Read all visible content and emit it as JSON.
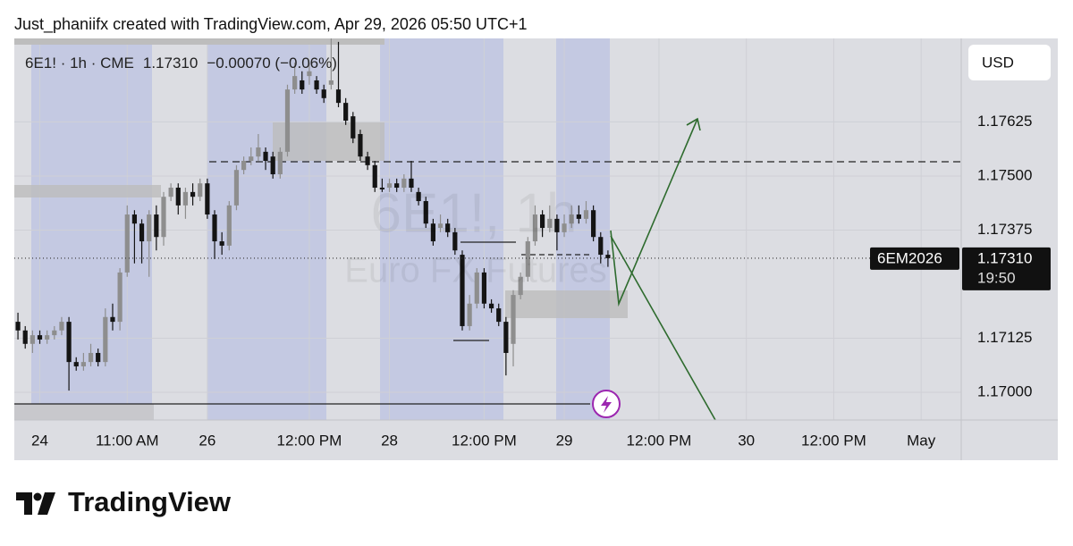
{
  "header": "Just_phaniifx created with TradingView.com, Apr 29, 2026 05:50 UTC+1",
  "footer_brand": "TradingView",
  "chart_data": {
    "type": "candlestick",
    "legend": {
      "symbol": "6E1! · 1h · CME",
      "last": "1.17310",
      "change": "−0.00070 (−0.06%)"
    },
    "watermark": {
      "symbol": "6E1!, 1h",
      "description": "Euro FX Futures"
    },
    "currency": "USD",
    "symbol_tag": "6EM2026",
    "last_price": {
      "value": 1.1731,
      "label": "1.17310"
    },
    "countdown": "19:50",
    "up_color": "#8e8e8e",
    "down_color": "#141414",
    "ylim": [
      1.16936,
      1.17818
    ],
    "yticks": [
      {
        "value": 1.17,
        "label": "1.17000"
      },
      {
        "value": 1.17125,
        "label": "1.17125"
      },
      {
        "value": 1.17375,
        "label": "1.17375"
      },
      {
        "value": 1.175,
        "label": "1.17500"
      },
      {
        "value": 1.17625,
        "label": "1.17625"
      }
    ],
    "grid": true,
    "categories": [
      null,
      null,
      null,
      "24",
      null,
      null,
      null,
      null,
      null,
      null,
      null,
      null,
      null,
      null,
      null,
      "11:00 AM",
      null,
      null,
      null,
      null,
      null,
      null,
      null,
      null,
      null,
      null,
      "26",
      null,
      null,
      null,
      null,
      null,
      null,
      null,
      null,
      null,
      null,
      null,
      null,
      null,
      "12:00 PM",
      null,
      null,
      null,
      null,
      null,
      null,
      null,
      null,
      null,
      null,
      "28",
      null,
      null,
      null,
      null,
      null,
      null,
      null,
      null,
      null,
      null,
      null,
      null,
      "12:00 PM",
      null,
      null,
      null,
      null,
      null,
      null,
      null,
      null,
      null,
      null,
      "29",
      null,
      null,
      null,
      null,
      null,
      null,
      null,
      null,
      null,
      null,
      null,
      null,
      "12:00 PM",
      null,
      null,
      null,
      null,
      null,
      null,
      null,
      null,
      null,
      null,
      null,
      "30",
      null,
      null,
      null,
      null,
      null,
      null,
      null,
      null,
      null,
      null,
      null,
      "12:00 PM",
      null,
      null,
      null,
      null,
      null,
      null,
      null,
      null,
      null,
      null,
      null,
      "May",
      null,
      null,
      null,
      null,
      null
    ],
    "open": [
      1.17163,
      1.17143,
      1.17112,
      1.17132,
      1.17122,
      1.17132,
      1.17143,
      1.17163,
      1.1707,
      1.1706,
      1.1707,
      1.17091,
      1.1707,
      1.17174,
      1.17163,
      1.17277,
      1.17411,
      1.1739,
      1.17349,
      1.17411,
      1.17359,
      1.17452,
      1.17473,
      1.17432,
      1.17463,
      1.17452,
      1.17483,
      1.17411,
      1.17349,
      1.17339,
      1.17432,
      1.17514,
      1.17535,
      1.17545,
      1.17556,
      1.17545,
      1.17504,
      1.17556,
      1.177,
      1.17721,
      1.17731,
      1.17721,
      1.177,
      1.17711,
      1.177,
      1.17669,
      1.17638,
      1.17597,
      1.17545,
      1.17525,
      1.17473,
      1.17473,
      1.17483,
      1.17473,
      1.17494,
      1.17463,
      1.17442,
      1.1739,
      1.1738,
      1.1739,
      1.1737,
      1.17318,
      1.17153,
      1.17205,
      1.17277,
      1.17205,
      1.17194,
      1.17163,
      1.17112,
      1.17225,
      1.17267,
      1.17349,
      1.17411,
      1.1738,
      1.17401,
      1.1737,
      1.1739,
      1.17411,
      1.17401,
      1.17421,
      1.17359,
      1.17318,
      null,
      null,
      null,
      null,
      null,
      null,
      null,
      null,
      null,
      null,
      null,
      null,
      null,
      null,
      null,
      null,
      null,
      null,
      null,
      null,
      null,
      null,
      null,
      null,
      null,
      null,
      null,
      null,
      null,
      null,
      null,
      null,
      null,
      null,
      null,
      null,
      null,
      null,
      null,
      null,
      null,
      null,
      null,
      null,
      null,
      null,
      null,
      null
    ],
    "high": [
      1.17184,
      1.17153,
      1.17143,
      1.17143,
      1.17143,
      1.17153,
      1.17174,
      1.17174,
      1.17081,
      1.17091,
      1.17112,
      1.17101,
      1.17194,
      1.17205,
      1.17287,
      1.17432,
      1.17421,
      1.174,
      1.17421,
      1.17432,
      1.17463,
      1.17483,
      1.17483,
      1.17473,
      1.17483,
      1.17494,
      1.17494,
      1.17421,
      1.1737,
      1.17442,
      1.17525,
      1.17545,
      1.17566,
      1.17597,
      1.17566,
      1.17556,
      1.17566,
      1.17711,
      1.17762,
      1.17742,
      1.17762,
      1.17731,
      1.17711,
      1.17818,
      1.1781,
      1.1768,
      1.17648,
      1.17607,
      1.17556,
      1.17535,
      1.17494,
      1.17494,
      1.17494,
      1.17504,
      1.17535,
      1.17473,
      1.17452,
      1.17401,
      1.17411,
      1.17401,
      1.1738,
      1.17328,
      1.17225,
      1.17287,
      1.17287,
      1.17215,
      1.17205,
      1.17174,
      1.17236,
      1.17277,
      1.17359,
      1.17432,
      1.17421,
      1.17432,
      1.17411,
      1.17411,
      1.17432,
      1.17432,
      1.17442,
      1.17432,
      1.1737,
      1.17328,
      null,
      null,
      null,
      null,
      null,
      null,
      null,
      null,
      null,
      null,
      null,
      null,
      null,
      null,
      null,
      null,
      null,
      null,
      null,
      null,
      null,
      null,
      null,
      null,
      null,
      null,
      null,
      null,
      null,
      null,
      null,
      null,
      null,
      null,
      null,
      null,
      null,
      null,
      null,
      null,
      null,
      null,
      null,
      null,
      null,
      null,
      null,
      null
    ],
    "low": [
      1.17122,
      1.17101,
      1.17091,
      1.17112,
      1.17112,
      1.17122,
      1.17132,
      1.17004,
      1.1705,
      1.1705,
      1.1706,
      1.1706,
      1.1706,
      1.17143,
      1.17143,
      1.17267,
      1.17298,
      1.17298,
      1.17267,
      1.17328,
      1.17339,
      1.17442,
      1.17411,
      1.17401,
      1.17432,
      1.17442,
      1.17401,
      1.17308,
      1.17318,
      1.17328,
      1.17421,
      1.17504,
      1.17525,
      1.17535,
      1.17514,
      1.17494,
      1.17494,
      1.17545,
      1.1769,
      1.1769,
      1.17711,
      1.1769,
      1.17669,
      1.177,
      1.17659,
      1.17618,
      1.17576,
      1.17535,
      1.17514,
      1.17463,
      1.17463,
      1.17463,
      1.17463,
      1.17463,
      1.17463,
      1.17432,
      1.1738,
      1.17339,
      1.1737,
      1.17359,
      1.17318,
      1.17143,
      1.17143,
      1.17194,
      1.17194,
      1.17184,
      1.17153,
      1.17039,
      1.1706,
      1.17215,
      1.17256,
      1.17339,
      1.17359,
      1.1737,
      1.17328,
      1.17359,
      1.1738,
      1.1739,
      1.1739,
      1.17349,
      1.17298,
      1.1729,
      null,
      null,
      null,
      null,
      null,
      null,
      null,
      null,
      null,
      null,
      null,
      null,
      null,
      null,
      null,
      null,
      null,
      null,
      null,
      null,
      null,
      null,
      null,
      null,
      null,
      null,
      null,
      null,
      null,
      null,
      null,
      null,
      null,
      null,
      null,
      null,
      null,
      null,
      null,
      null,
      null,
      null,
      null,
      null,
      null,
      null,
      null,
      null
    ],
    "close": [
      1.17143,
      1.17112,
      1.17132,
      1.17122,
      1.17132,
      1.17143,
      1.17163,
      1.1707,
      1.1706,
      1.1707,
      1.17091,
      1.1707,
      1.17174,
      1.17163,
      1.17277,
      1.17411,
      1.1739,
      1.17349,
      1.17411,
      1.17359,
      1.17452,
      1.17473,
      1.17432,
      1.17463,
      1.17452,
      1.17483,
      1.17411,
      1.17349,
      1.17339,
      1.17432,
      1.17514,
      1.17535,
      1.17545,
      1.17566,
      1.17535,
      1.17504,
      1.17556,
      1.177,
      1.17731,
      1.177,
      1.17742,
      1.177,
      1.1768,
      1.17721,
      1.17669,
      1.17628,
      1.17587,
      1.17545,
      1.17525,
      1.17473,
      1.17469,
      1.17483,
      1.17473,
      1.17494,
      1.17473,
      1.17442,
      1.1739,
      1.17349,
      1.1739,
      1.1737,
      1.17328,
      1.17153,
      1.17205,
      1.17277,
      1.17205,
      1.17194,
      1.17163,
      1.17091,
      1.17225,
      1.17267,
      1.17349,
      1.17411,
      1.1738,
      1.17401,
      1.1737,
      1.1739,
      1.17411,
      1.17401,
      1.17421,
      1.17359,
      1.17318,
      1.1731,
      null,
      null,
      null,
      null,
      null,
      null,
      null,
      null,
      null,
      null,
      null,
      null,
      null,
      null,
      null,
      null,
      null,
      null,
      null,
      null,
      null,
      null,
      null,
      null,
      null,
      null,
      null,
      null,
      null,
      null,
      null,
      null,
      null,
      null,
      null,
      null,
      null,
      null,
      null,
      null,
      null,
      null,
      null,
      null,
      null,
      null,
      null,
      null
    ]
  }
}
